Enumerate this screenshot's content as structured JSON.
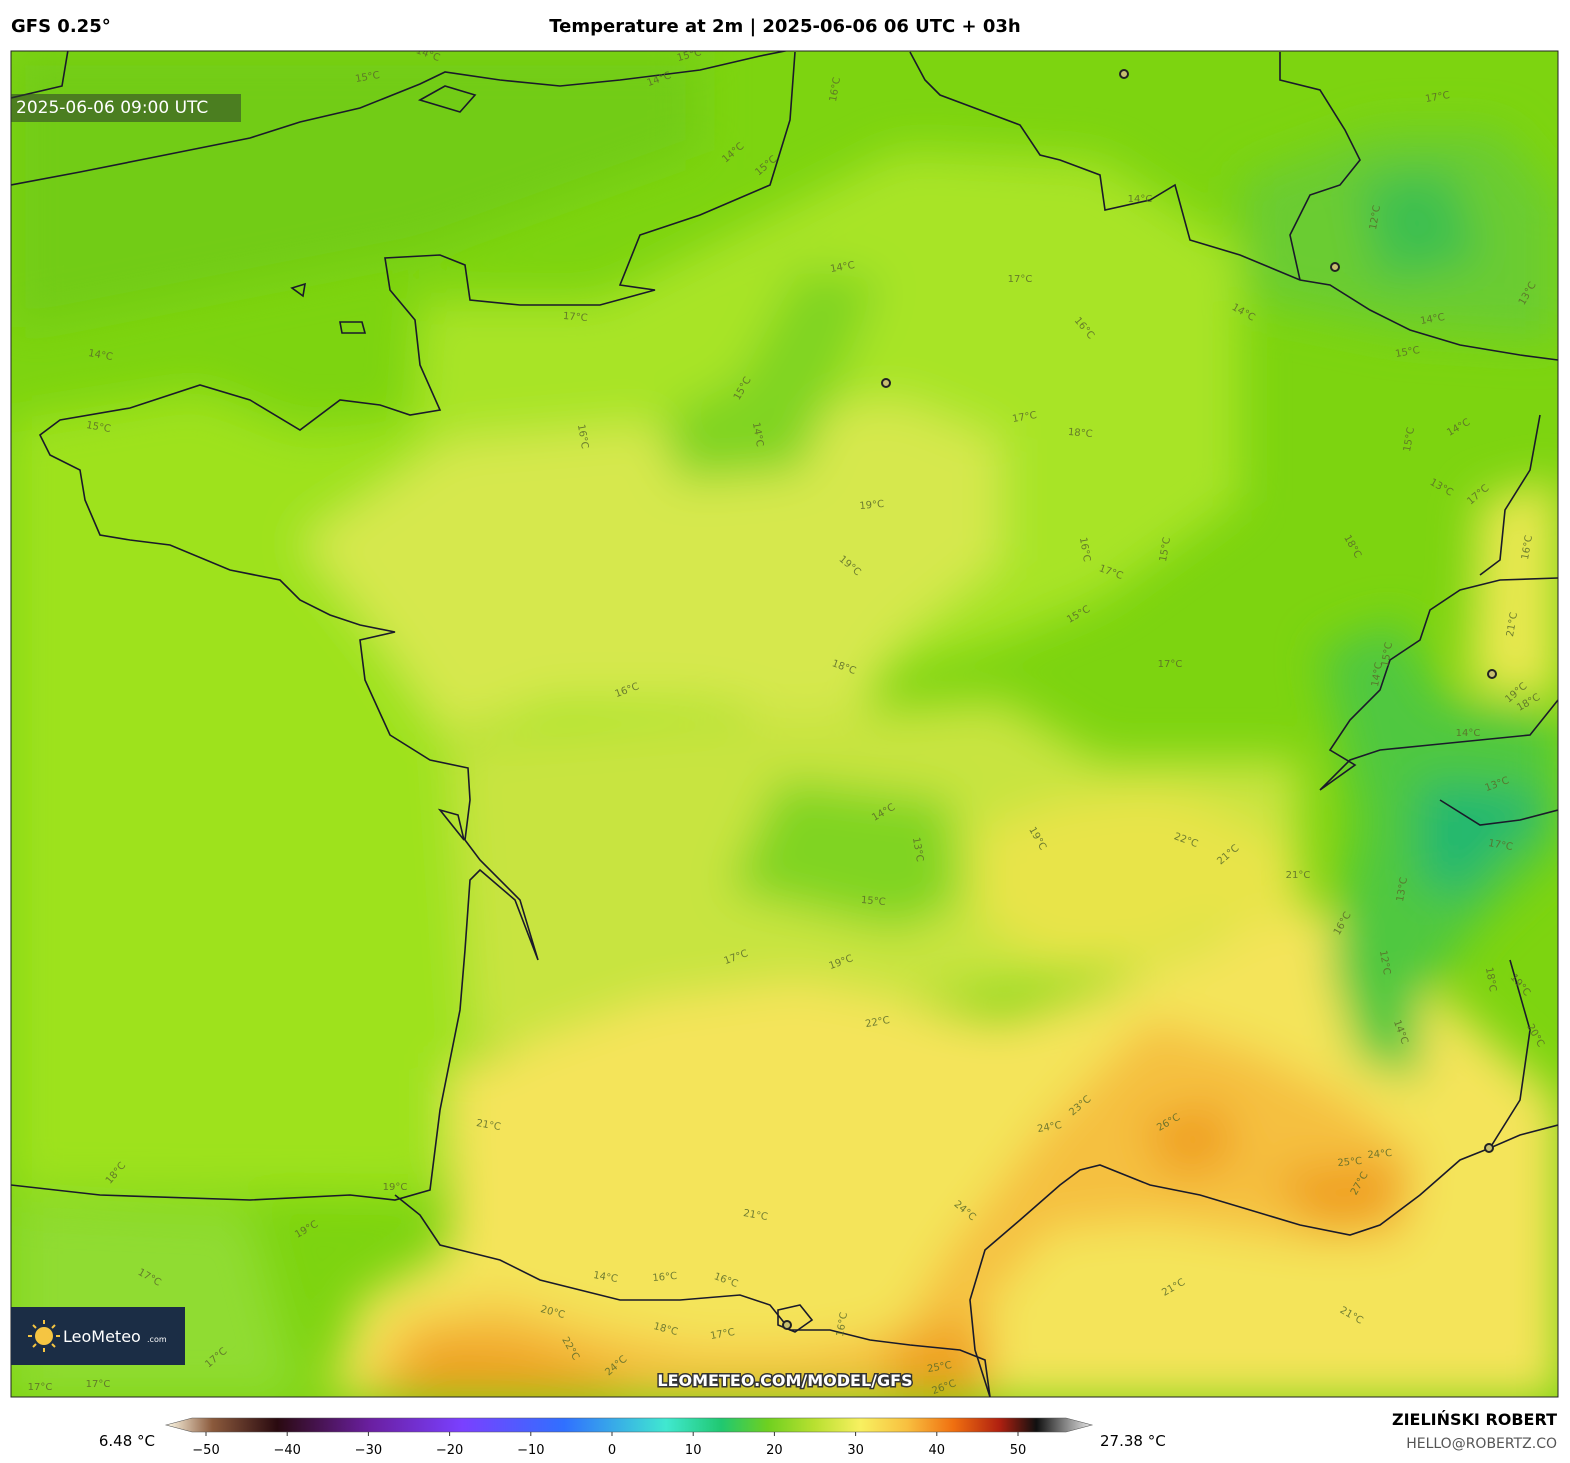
{
  "header": {
    "model": "GFS 0.25°",
    "title": "Temperature at 2m | 2025-06-06 06 UTC + 03h"
  },
  "map": {
    "valid_time": "2025-06-06 09:00 UTC",
    "watermark": "LEOMETEO.COM/MODEL/GFS",
    "logo": "LeoMeteo",
    "logo_suffix": ".com",
    "contour_labels": [
      "15°C",
      "14°C",
      "14°C",
      "15°C",
      "16°C",
      "17°C",
      "14°C",
      "15°C",
      "14°C",
      "12°C",
      "13°C",
      "14°C",
      "17°C",
      "17°C",
      "14°C",
      "16°C",
      "14°C",
      "15°C",
      "14°C",
      "15°C",
      "15°C",
      "16°C",
      "14°C",
      "17°C",
      "18°C",
      "19°C",
      "19°C",
      "16°C",
      "17°C",
      "16°C",
      "18°C",
      "17°C",
      "15°C",
      "14°C",
      "13°C",
      "15°C",
      "22°C",
      "21°C",
      "19°C",
      "21°C",
      "17°C",
      "19°C",
      "22°C",
      "21°C",
      "18°C",
      "24°C",
      "23°C",
      "26°C",
      "25°C",
      "24°C",
      "27°C",
      "24°C",
      "21°C",
      "19°C",
      "19°C",
      "17°C",
      "14°C",
      "16°C",
      "16°C",
      "18°C",
      "17°C",
      "16°C",
      "20°C",
      "22°C",
      "24°C",
      "21°C",
      "21°C",
      "17°C",
      "17°C",
      "17°C",
      "25°C",
      "26°C",
      "18°C",
      "19°C",
      "20°C",
      "16°C",
      "12°C",
      "13°C",
      "14°C",
      "17°C",
      "14°C",
      "13°C",
      "14°C",
      "13°C",
      "17°C",
      "18°C",
      "15°C",
      "21°C",
      "19°C",
      "18°C",
      "16°C",
      "15°C",
      "14°C",
      "15°C"
    ]
  },
  "colorbar": {
    "min_label": "6.48 °C",
    "max_label": "27.38 °C",
    "ticks": [
      {
        "value": -50,
        "label": "−50"
      },
      {
        "value": -40,
        "label": "−40"
      },
      {
        "value": -30,
        "label": "−30"
      },
      {
        "value": -20,
        "label": "−20"
      },
      {
        "value": -10,
        "label": "−10"
      },
      0,
      10,
      20,
      30,
      40,
      50
    ]
  },
  "credit": {
    "author": "ZIELIŃSKI ROBERT",
    "email": "HELLO@ROBERTZ.CO"
  }
}
